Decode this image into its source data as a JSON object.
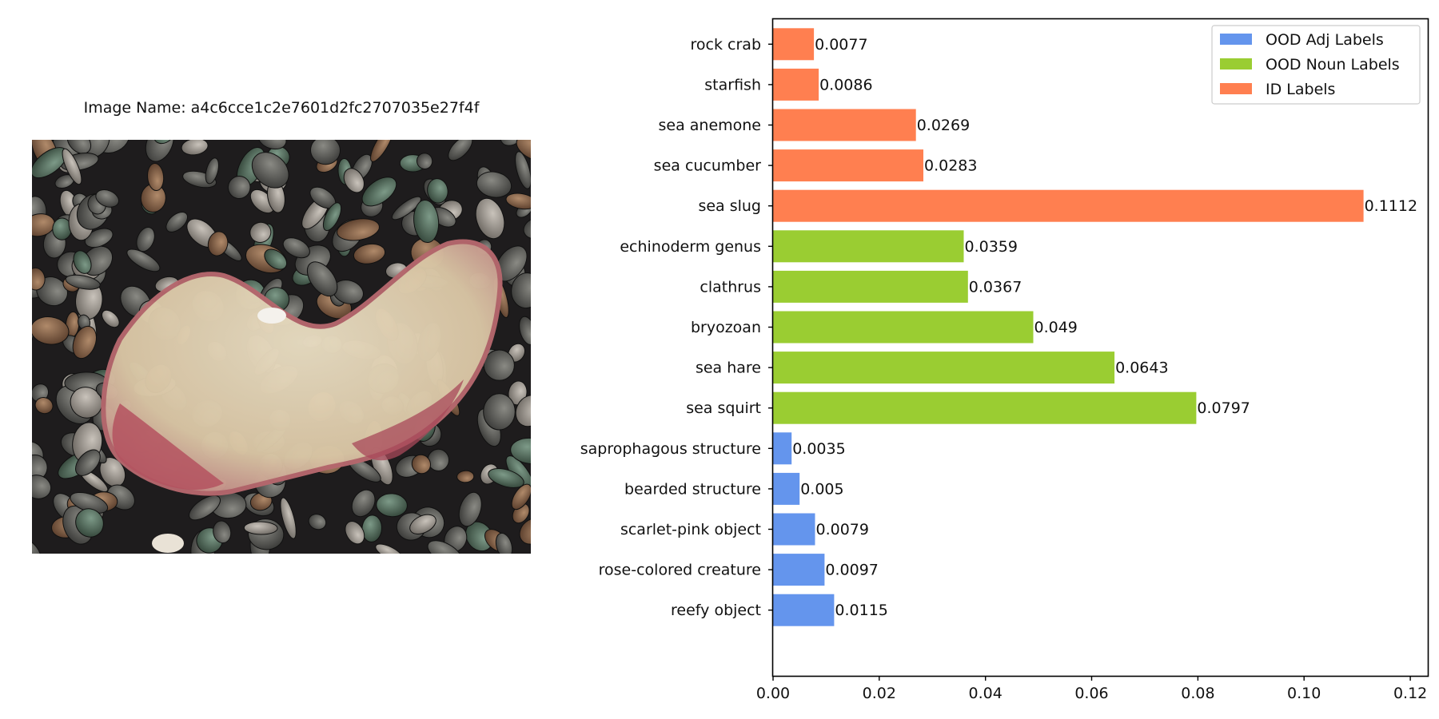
{
  "image_panel": {
    "title": "Image Name: a4c6cce1c2e7601d2fc2707035e27f4f"
  },
  "colors": {
    "adj": "#6495ED",
    "noun": "#9ACD32",
    "id": "#FF7F50"
  },
  "chart_data": {
    "type": "bar",
    "orientation": "horizontal",
    "categories": [
      "reefy object",
      "rose-colored creature",
      "scarlet-pink object",
      "bearded structure",
      "saprophagous structure",
      "sea squirt",
      "sea hare",
      "bryozoan",
      "clathrus",
      "echinoderm genus",
      "sea slug",
      "sea cucumber",
      "sea anemone",
      "starfish",
      "rock crab"
    ],
    "values": [
      0.0115,
      0.0097,
      0.0079,
      0.005,
      0.0035,
      0.0797,
      0.0643,
      0.049,
      0.0367,
      0.0359,
      0.1112,
      0.0283,
      0.0269,
      0.0086,
      0.0077
    ],
    "value_labels": [
      "0.0115",
      "0.0097",
      "0.0079",
      "0.005",
      "0.0035",
      "0.0797",
      "0.0643",
      "0.049",
      "0.0367",
      "0.0359",
      "0.1112",
      "0.0283",
      "0.0269",
      "0.0086",
      "0.0077"
    ],
    "groups": [
      "adj",
      "adj",
      "adj",
      "adj",
      "adj",
      "noun",
      "noun",
      "noun",
      "noun",
      "noun",
      "id",
      "id",
      "id",
      "id",
      "id"
    ],
    "legend": [
      {
        "key": "adj",
        "label": "OOD Adj Labels"
      },
      {
        "key": "noun",
        "label": "OOD Noun Labels"
      },
      {
        "key": "id",
        "label": "ID Labels"
      }
    ],
    "legend_position": "top-right",
    "xticks": [
      "0.00",
      "0.02",
      "0.04",
      "0.06",
      "0.08",
      "0.10",
      "0.12"
    ],
    "xtick_values": [
      0,
      0.02,
      0.04,
      0.06,
      0.08,
      0.1,
      0.12
    ],
    "xlim": [
      0,
      0.1233
    ],
    "grid": false,
    "xlabel": "",
    "ylabel": ""
  }
}
